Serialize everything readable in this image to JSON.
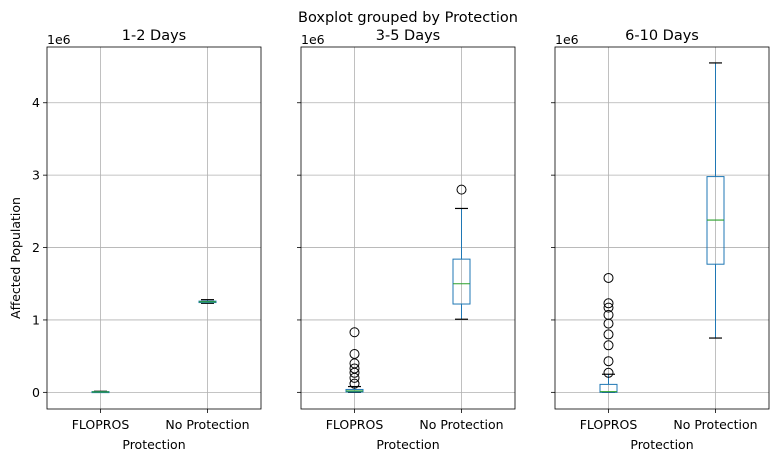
{
  "figure": {
    "suptitle": "Boxplot grouped by Protection",
    "ylabel": "Affected Population",
    "offset_label": "1e6"
  },
  "colors": {
    "box": "#1f77b4",
    "median": "#2ca02c",
    "whisker": "#1f77b4",
    "cap": "#000000",
    "grid": "#b0b0b0",
    "flier_edge": "#000000"
  },
  "chart_data": [
    {
      "type": "box",
      "title": "1-2 Days",
      "xlabel": "Protection",
      "categories": [
        "FLOPROS",
        "No Protection"
      ],
      "ylim": [
        -0.23,
        4.77
      ],
      "yticks": [
        0,
        1,
        2,
        3,
        4
      ],
      "unit_multiplier": 1000000,
      "grid": true,
      "boxes": [
        {
          "category": "FLOPROS",
          "whislo": 0.0,
          "q1": 0.002,
          "med": 0.005,
          "q3": 0.01,
          "whishi": 0.015,
          "fliers": []
        },
        {
          "category": "No Protection",
          "whislo": 1.23,
          "q1": 1.24,
          "med": 1.25,
          "q3": 1.26,
          "whishi": 1.28,
          "fliers": []
        }
      ]
    },
    {
      "type": "box",
      "title": "3-5 Days",
      "xlabel": "Protection",
      "categories": [
        "FLOPROS",
        "No Protection"
      ],
      "ylim": [
        -0.23,
        4.77
      ],
      "yticks": [
        0,
        1,
        2,
        3,
        4
      ],
      "unit_multiplier": 1000000,
      "grid": true,
      "boxes": [
        {
          "category": "FLOPROS",
          "whislo": 0.0,
          "q1": 0.005,
          "med": 0.02,
          "q3": 0.04,
          "whishi": 0.08,
          "fliers": [
            0.12,
            0.2,
            0.27,
            0.33,
            0.4,
            0.53,
            0.83
          ]
        },
        {
          "category": "No Protection",
          "whislo": 1.01,
          "q1": 1.22,
          "med": 1.5,
          "q3": 1.84,
          "whishi": 2.54,
          "fliers": [
            2.8
          ]
        }
      ]
    },
    {
      "type": "box",
      "title": "6-10 Days",
      "xlabel": "Protection",
      "categories": [
        "FLOPROS",
        "No Protection"
      ],
      "ylim": [
        -0.23,
        4.77
      ],
      "yticks": [
        0,
        1,
        2,
        3,
        4
      ],
      "unit_multiplier": 1000000,
      "grid": true,
      "boxes": [
        {
          "category": "FLOPROS",
          "whislo": 0.0,
          "q1": 0.0,
          "med": 0.01,
          "q3": 0.11,
          "whishi": 0.25,
          "fliers": [
            0.27,
            0.43,
            0.65,
            0.8,
            0.95,
            1.07,
            1.17,
            1.23,
            1.58
          ]
        },
        {
          "category": "No Protection",
          "whislo": 0.75,
          "q1": 1.77,
          "med": 2.38,
          "q3": 2.98,
          "whishi": 4.55,
          "fliers": []
        }
      ]
    }
  ]
}
